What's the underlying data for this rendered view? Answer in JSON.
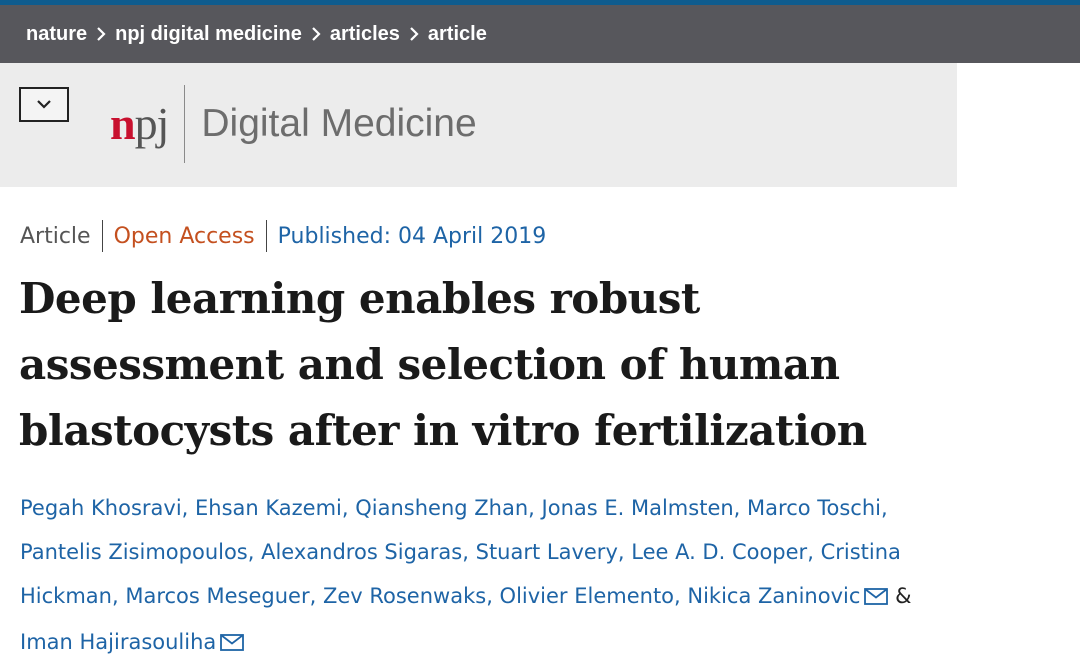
{
  "colors": {
    "breadcrumb_bg": "#57575c",
    "top_accent": "#0f5c8e",
    "header_bg": "#ececec",
    "npj_red": "#c8102e",
    "link_blue": "#1e64a6",
    "open_access_orange": "#c4501f"
  },
  "breadcrumb": {
    "items": [
      "nature",
      "npj digital medicine",
      "articles",
      "article"
    ],
    "separator_icon": "chevron-right-icon"
  },
  "header": {
    "menu_icon": "chevron-down-icon",
    "logo_n": "n",
    "logo_pj": "pj",
    "journal_name": "Digital Medicine"
  },
  "article": {
    "type": "Article",
    "access": "Open Access",
    "published": "Published: 04 April 2019",
    "title": "Deep learning enables robust assessment and selection of human blastocysts after in vitro fertilization",
    "authors": [
      "Pegah Khosravi",
      "Ehsan Kazemi",
      "Qiansheng Zhan",
      "Jonas E. Malmsten",
      "Marco Toschi",
      "Pantelis Zisimopoulos",
      "Alexandros Sigaras",
      "Stuart Lavery",
      "Lee A. D. Cooper",
      "Cristina Hickman",
      "Marcos Meseguer",
      "Zev Rosenwaks",
      "Olivier Elemento",
      "Nikica Zaninovic",
      "Iman Hajirasouliha"
    ],
    "author_separator": ", ",
    "final_joiner": " & ",
    "corresponding_authors": [
      "Nikica Zaninovic",
      "Iman Hajirasouliha"
    ],
    "mail_icon": "envelope-icon"
  }
}
